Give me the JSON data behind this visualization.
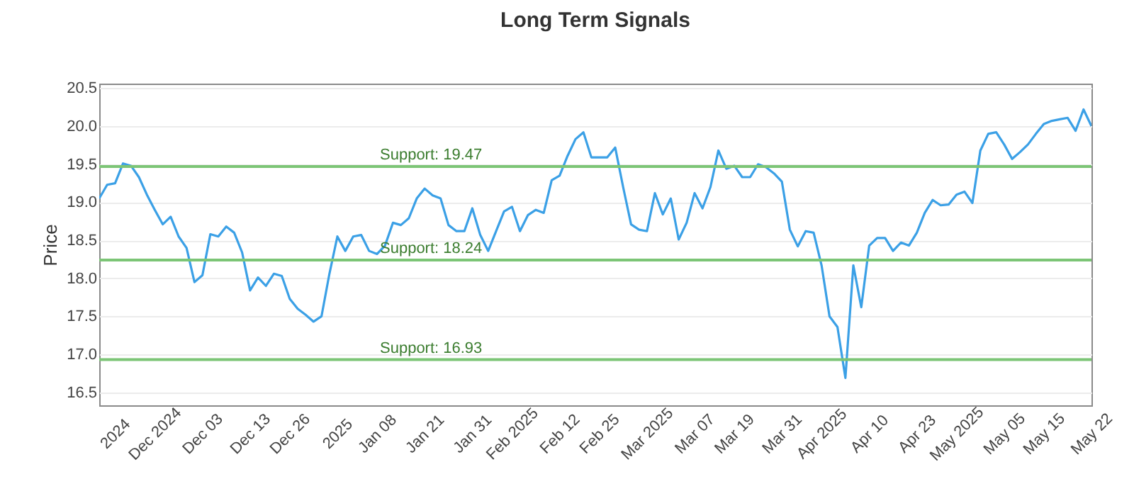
{
  "chart_data": {
    "type": "line",
    "title": "Long Term Signals",
    "ylabel": "Price",
    "categories": [
      null,
      null,
      "2024",
      null,
      null,
      null,
      null,
      "Dec 2024",
      null,
      null,
      null,
      null,
      null,
      "Dec 03",
      null,
      null,
      null,
      null,
      null,
      "Dec 13",
      null,
      null,
      null,
      null,
      "Dec 26",
      null,
      null,
      null,
      null,
      null,
      "2025",
      null,
      null,
      null,
      null,
      "Jan 08",
      null,
      null,
      null,
      null,
      null,
      "Jan 21",
      null,
      null,
      null,
      null,
      null,
      "Jan 31",
      null,
      null,
      null,
      null,
      "Feb 2025",
      null,
      null,
      null,
      null,
      null,
      "Feb 12",
      null,
      null,
      null,
      null,
      "Feb 25",
      null,
      null,
      null,
      null,
      null,
      "Mar 2025",
      null,
      null,
      null,
      null,
      null,
      "Mar 07",
      null,
      null,
      null,
      null,
      "Mar 19",
      null,
      null,
      null,
      null,
      null,
      "Mar 31",
      null,
      null,
      null,
      null,
      "Apr 2025",
      null,
      null,
      null,
      null,
      null,
      "Apr 10",
      null,
      null,
      null,
      null,
      null,
      "Apr 23",
      null,
      null,
      null,
      null,
      "May 2025",
      null,
      null,
      null,
      null,
      null,
      "May 05",
      null,
      null,
      null,
      null,
      "May 15",
      null,
      null,
      null,
      null,
      null,
      "May 22"
    ],
    "series": [
      {
        "color": "#3ba0e6",
        "values": [
          19.05,
          19.23,
          19.25,
          19.51,
          19.48,
          19.33,
          19.1,
          18.9,
          18.71,
          18.81,
          18.55,
          18.4,
          17.95,
          18.04,
          18.58,
          18.55,
          18.68,
          18.6,
          18.34,
          17.84,
          18.01,
          17.9,
          18.06,
          18.03,
          17.73,
          17.6,
          17.52,
          17.43,
          17.5,
          18.06,
          18.55,
          18.36,
          18.55,
          18.57,
          18.36,
          18.32,
          18.43,
          18.73,
          18.7,
          18.79,
          19.05,
          19.18,
          19.09,
          19.05,
          18.7,
          18.62,
          18.62,
          18.92,
          18.57,
          18.36,
          18.62,
          18.88,
          18.94,
          18.62,
          18.83,
          18.9,
          18.86,
          19.29,
          19.35,
          19.61,
          19.83,
          19.92,
          19.59,
          19.59,
          19.59,
          19.72,
          19.2,
          18.71,
          18.64,
          18.62,
          19.12,
          18.84,
          19.05,
          18.51,
          18.73,
          19.12,
          18.92,
          19.2,
          19.68,
          19.44,
          19.48,
          19.33,
          19.33,
          19.5,
          19.46,
          19.38,
          19.27,
          18.64,
          18.42,
          18.62,
          18.6,
          18.17,
          17.5,
          17.36,
          16.69,
          18.17,
          17.62,
          18.43,
          18.53,
          18.53,
          18.36,
          18.47,
          18.43,
          18.6,
          18.86,
          19.03,
          18.96,
          18.97,
          19.1,
          19.14,
          18.99,
          19.68,
          19.9,
          19.92,
          19.76,
          19.57,
          19.66,
          19.76,
          19.9,
          20.03,
          20.07,
          20.09,
          20.11,
          19.94,
          20.22,
          20.0
        ]
      }
    ],
    "ylim": [
      16.33,
      20.56
    ],
    "yticks": [
      16.5,
      {
        "value": 17,
        "label": "17.0"
      },
      17.5,
      {
        "value": 18,
        "label": "18.0"
      },
      18.5,
      {
        "value": 19,
        "label": "19.0"
      },
      19.5,
      {
        "value": 20,
        "label": "20.0"
      },
      20.5
    ],
    "grid": "y",
    "ref_lines": [
      {
        "axis": "y",
        "value": 19.47,
        "label": "Support: 19.47",
        "color": "#7cc576"
      },
      {
        "axis": "y",
        "value": 18.24,
        "label": "Support: 18.24",
        "color": "#7cc576"
      },
      {
        "axis": "y",
        "value": 16.93,
        "label": "Support: 16.93",
        "color": "#7cc576"
      }
    ]
  }
}
